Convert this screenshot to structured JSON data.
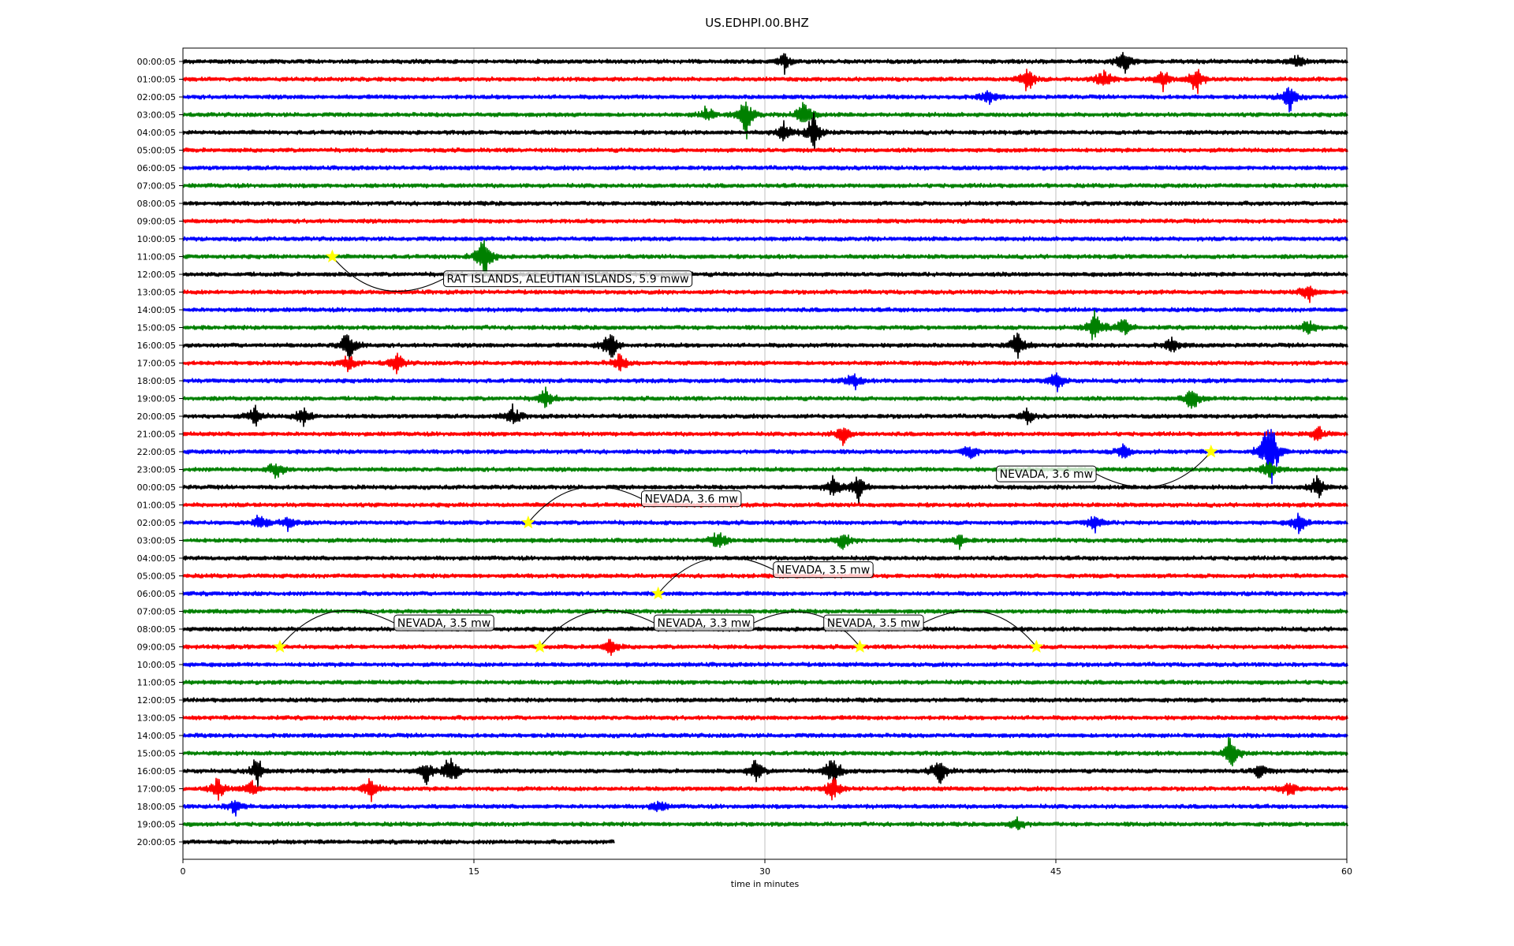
{
  "chart_data": {
    "type": "line",
    "title": "US.EDHPI.00.BHZ",
    "xlabel": "time in minutes",
    "xlim": [
      0,
      60
    ],
    "x_ticks": [
      "0",
      "15",
      "30",
      "45",
      "60"
    ],
    "grid": "vertical",
    "trace_colors": [
      "#000000",
      "#ff0000",
      "#0000ff",
      "#008000"
    ],
    "row_labels": [
      "00:00:05",
      "01:00:05",
      "02:00:05",
      "03:00:05",
      "04:00:05",
      "05:00:05",
      "06:00:05",
      "07:00:05",
      "08:00:05",
      "09:00:05",
      "10:00:05",
      "11:00:05",
      "12:00:05",
      "13:00:05",
      "14:00:05",
      "15:00:05",
      "16:00:05",
      "17:00:05",
      "18:00:05",
      "19:00:05",
      "20:00:05",
      "21:00:05",
      "22:00:05",
      "23:00:05",
      "00:00:05",
      "01:00:05",
      "02:00:05",
      "03:00:05",
      "04:00:05",
      "05:00:05",
      "06:00:05",
      "07:00:05",
      "08:00:05",
      "09:00:05",
      "10:00:05",
      "11:00:05",
      "12:00:05",
      "13:00:05",
      "14:00:05",
      "15:00:05",
      "16:00:05",
      "17:00:05",
      "18:00:05",
      "19:00:05",
      "20:00:05"
    ],
    "last_row_end_minute": 22.2,
    "bursts": [
      {
        "row": 0,
        "minute": 31,
        "amp": 0.6
      },
      {
        "row": 0,
        "minute": 48.5,
        "amp": 0.7
      },
      {
        "row": 0,
        "minute": 57.5,
        "amp": 0.5
      },
      {
        "row": 1,
        "minute": 43.5,
        "amp": 0.8
      },
      {
        "row": 1,
        "minute": 47.5,
        "amp": 0.7
      },
      {
        "row": 1,
        "minute": 50.5,
        "amp": 0.6
      },
      {
        "row": 1,
        "minute": 52.2,
        "amp": 0.9
      },
      {
        "row": 2,
        "minute": 41.5,
        "amp": 0.5
      },
      {
        "row": 2,
        "minute": 57,
        "amp": 0.9
      },
      {
        "row": 3,
        "minute": 29,
        "amp": 1.2
      },
      {
        "row": 3,
        "minute": 32,
        "amp": 1.0
      },
      {
        "row": 3,
        "minute": 27,
        "amp": 0.5
      },
      {
        "row": 4,
        "minute": 32.5,
        "amp": 1.1
      },
      {
        "row": 4,
        "minute": 31,
        "amp": 0.6
      },
      {
        "row": 11,
        "minute": 15.5,
        "amp": 1.4
      },
      {
        "row": 13,
        "minute": 58,
        "amp": 0.6
      },
      {
        "row": 15,
        "minute": 47,
        "amp": 1.0
      },
      {
        "row": 15,
        "minute": 48.5,
        "amp": 0.6
      },
      {
        "row": 15,
        "minute": 58,
        "amp": 0.5
      },
      {
        "row": 16,
        "minute": 8.5,
        "amp": 1.0
      },
      {
        "row": 16,
        "minute": 22,
        "amp": 1.1
      },
      {
        "row": 16,
        "minute": 43,
        "amp": 0.8
      },
      {
        "row": 16,
        "minute": 51,
        "amp": 0.5
      },
      {
        "row": 17,
        "minute": 8.5,
        "amp": 0.5
      },
      {
        "row": 17,
        "minute": 11,
        "amp": 0.6
      },
      {
        "row": 17,
        "minute": 22.5,
        "amp": 0.5
      },
      {
        "row": 18,
        "minute": 34.5,
        "amp": 0.6
      },
      {
        "row": 18,
        "minute": 45,
        "amp": 0.6
      },
      {
        "row": 19,
        "minute": 18.7,
        "amp": 0.6
      },
      {
        "row": 19,
        "minute": 52,
        "amp": 0.7
      },
      {
        "row": 20,
        "minute": 3.7,
        "amp": 0.6
      },
      {
        "row": 20,
        "minute": 6.2,
        "amp": 0.6
      },
      {
        "row": 20,
        "minute": 17,
        "amp": 0.6
      },
      {
        "row": 20,
        "minute": 43.5,
        "amp": 0.4
      },
      {
        "row": 21,
        "minute": 34,
        "amp": 0.6
      },
      {
        "row": 21,
        "minute": 58.5,
        "amp": 0.5
      },
      {
        "row": 22,
        "minute": 56,
        "amp": 2.4
      },
      {
        "row": 22,
        "minute": 40.5,
        "amp": 0.5
      },
      {
        "row": 22,
        "minute": 48.5,
        "amp": 0.5
      },
      {
        "row": 23,
        "minute": 4.8,
        "amp": 0.5
      },
      {
        "row": 23,
        "minute": 56,
        "amp": 0.6
      },
      {
        "row": 24,
        "minute": 33.5,
        "amp": 0.6
      },
      {
        "row": 24,
        "minute": 34.8,
        "amp": 0.8
      },
      {
        "row": 24,
        "minute": 58.5,
        "amp": 0.7
      },
      {
        "row": 26,
        "minute": 4,
        "amp": 0.5
      },
      {
        "row": 26,
        "minute": 5.4,
        "amp": 0.5
      },
      {
        "row": 26,
        "minute": 47,
        "amp": 0.5
      },
      {
        "row": 26,
        "minute": 57.5,
        "amp": 0.6
      },
      {
        "row": 27,
        "minute": 27.6,
        "amp": 0.6
      },
      {
        "row": 27,
        "minute": 34,
        "amp": 0.5
      },
      {
        "row": 27,
        "minute": 40,
        "amp": 0.4
      },
      {
        "row": 33,
        "minute": 22,
        "amp": 0.5
      },
      {
        "row": 39,
        "minute": 54,
        "amp": 1.0
      },
      {
        "row": 40,
        "minute": 3.8,
        "amp": 0.8
      },
      {
        "row": 40,
        "minute": 12.5,
        "amp": 0.7
      },
      {
        "row": 40,
        "minute": 13.8,
        "amp": 1.0
      },
      {
        "row": 40,
        "minute": 29.5,
        "amp": 0.7
      },
      {
        "row": 40,
        "minute": 33.5,
        "amp": 1.0
      },
      {
        "row": 40,
        "minute": 39,
        "amp": 0.8
      },
      {
        "row": 40,
        "minute": 55.5,
        "amp": 0.5
      },
      {
        "row": 41,
        "minute": 1.8,
        "amp": 0.6
      },
      {
        "row": 41,
        "minute": 3.5,
        "amp": 0.5
      },
      {
        "row": 41,
        "minute": 9.7,
        "amp": 0.9
      },
      {
        "row": 41,
        "minute": 33.5,
        "amp": 0.7
      },
      {
        "row": 41,
        "minute": 57,
        "amp": 0.5
      },
      {
        "row": 42,
        "minute": 2.7,
        "amp": 0.5
      },
      {
        "row": 42,
        "minute": 24.5,
        "amp": 0.4
      },
      {
        "row": 43,
        "minute": 43,
        "amp": 0.4
      }
    ],
    "events": [
      {
        "label": "RAT ISLANDS, ALEUTIAN ISLANDS, 5.9 mww",
        "row": 11,
        "minute": 7.7,
        "label_row": 12.25,
        "label_minute": 13.6,
        "rad": 0.2
      },
      {
        "label": "NEVADA, 3.6 mw",
        "row": 22,
        "minute": 53,
        "label_row": 23.25,
        "label_minute": 42.1,
        "rad": -0.2
      },
      {
        "label": "NEVADA, 3.6 mw",
        "row": 26,
        "minute": 17.8,
        "label_row": 24.65,
        "label_minute": 23.8,
        "rad": -0.2
      },
      {
        "label": "NEVADA, 3.5 mw",
        "row": 30,
        "minute": 24.5,
        "label_row": 28.65,
        "label_minute": 30.6,
        "rad": -0.2
      },
      {
        "label": "NEVADA, 3.5 mw",
        "row": 33,
        "minute": 5,
        "label_row": 31.65,
        "label_minute": 11.05,
        "rad": -0.2
      },
      {
        "label": "NEVADA, 3.3 mw",
        "row": 33,
        "minute": 18.4,
        "label_row": 31.65,
        "label_minute": 24.45,
        "rad": -0.2
      },
      {
        "label": "NEVADA, 3.3 mw",
        "row": 33,
        "minute": 34.9,
        "label_row": 31.65,
        "label_minute": 24.45,
        "rad": 0.2
      },
      {
        "label": "NEVADA, 3.5 mw",
        "row": 33,
        "minute": 44,
        "label_row": 31.65,
        "label_minute": 33.2,
        "rad": 0.2
      }
    ]
  }
}
